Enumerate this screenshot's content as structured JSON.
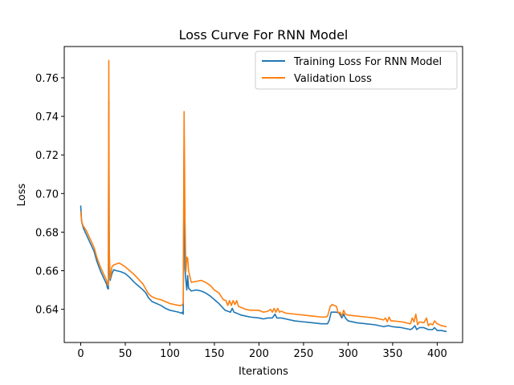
{
  "chart_data": {
    "type": "line",
    "title": "Loss Curve For RNN Model",
    "xlabel": "Iterations",
    "ylabel": "Loss",
    "xlim": [
      -18.5,
      428.5
    ],
    "ylim": [
      0.6228,
      0.7762
    ],
    "xticks": [
      0,
      50,
      100,
      150,
      200,
      250,
      300,
      350,
      400
    ],
    "xtick_labels": [
      "0",
      "50",
      "100",
      "150",
      "200",
      "250",
      "300",
      "350",
      "400"
    ],
    "yticks": [
      0.64,
      0.66,
      0.68,
      0.7,
      0.72,
      0.74,
      0.76
    ],
    "ytick_labels": [
      "0.64",
      "0.66",
      "0.68",
      "0.70",
      "0.72",
      "0.74",
      "0.76"
    ],
    "grid": false,
    "legend_position": "top-right",
    "series": [
      {
        "name": "Training Loss For RNN Model",
        "color": "#1f77b4",
        "points": [
          [
            0,
            0.6935
          ],
          [
            1,
            0.6855
          ],
          [
            3,
            0.682
          ],
          [
            6,
            0.679
          ],
          [
            10,
            0.675
          ],
          [
            15,
            0.67
          ],
          [
            18,
            0.665
          ],
          [
            22,
            0.66
          ],
          [
            26,
            0.656
          ],
          [
            29,
            0.653
          ],
          [
            30,
            0.651
          ],
          [
            31,
            0.6505
          ],
          [
            31.5,
            0.7475
          ],
          [
            32,
            0.66
          ],
          [
            33,
            0.655
          ],
          [
            35,
            0.6585
          ],
          [
            37,
            0.6605
          ],
          [
            40,
            0.66
          ],
          [
            45,
            0.6595
          ],
          [
            50,
            0.6585
          ],
          [
            55,
            0.6565
          ],
          [
            60,
            0.654
          ],
          [
            65,
            0.652
          ],
          [
            70,
            0.65
          ],
          [
            73,
            0.6485
          ],
          [
            76,
            0.646
          ],
          [
            80,
            0.644
          ],
          [
            85,
            0.643
          ],
          [
            90,
            0.642
          ],
          [
            95,
            0.6405
          ],
          [
            100,
            0.6395
          ],
          [
            105,
            0.639
          ],
          [
            110,
            0.6385
          ],
          [
            113,
            0.638
          ],
          [
            114,
            0.6385
          ],
          [
            115,
            0.6375
          ],
          [
            116,
            0.7235
          ],
          [
            117,
            0.661
          ],
          [
            118,
            0.655
          ],
          [
            119,
            0.65
          ],
          [
            120,
            0.6575
          ],
          [
            121,
            0.651
          ],
          [
            124,
            0.6495
          ],
          [
            130,
            0.65
          ],
          [
            135,
            0.6495
          ],
          [
            140,
            0.6485
          ],
          [
            145,
            0.647
          ],
          [
            150,
            0.645
          ],
          [
            155,
            0.643
          ],
          [
            160,
            0.6405
          ],
          [
            162,
            0.6395
          ],
          [
            165,
            0.639
          ],
          [
            168,
            0.6385
          ],
          [
            170,
            0.6405
          ],
          [
            172,
            0.6385
          ],
          [
            175,
            0.638
          ],
          [
            180,
            0.637
          ],
          [
            185,
            0.6365
          ],
          [
            190,
            0.636
          ],
          [
            200,
            0.6355
          ],
          [
            205,
            0.635
          ],
          [
            210,
            0.6355
          ],
          [
            215,
            0.6355
          ],
          [
            218,
            0.6375
          ],
          [
            220,
            0.6355
          ],
          [
            225,
            0.6355
          ],
          [
            230,
            0.635
          ],
          [
            240,
            0.634
          ],
          [
            250,
            0.6335
          ],
          [
            260,
            0.633
          ],
          [
            270,
            0.6325
          ],
          [
            277,
            0.6325
          ],
          [
            279,
            0.6345
          ],
          [
            281,
            0.6385
          ],
          [
            287,
            0.6385
          ],
          [
            290,
            0.638
          ],
          [
            293,
            0.6355
          ],
          [
            295,
            0.6375
          ],
          [
            297,
            0.6355
          ],
          [
            300,
            0.634
          ],
          [
            310,
            0.633
          ],
          [
            320,
            0.6325
          ],
          [
            330,
            0.632
          ],
          [
            340,
            0.631
          ],
          [
            345,
            0.6315
          ],
          [
            350,
            0.631
          ],
          [
            360,
            0.6305
          ],
          [
            370,
            0.6295
          ],
          [
            372,
            0.63
          ],
          [
            375,
            0.6315
          ],
          [
            377,
            0.6295
          ],
          [
            380,
            0.6305
          ],
          [
            385,
            0.6305
          ],
          [
            390,
            0.6295
          ],
          [
            395,
            0.6295
          ],
          [
            397,
            0.6305
          ],
          [
            400,
            0.629
          ],
          [
            405,
            0.629
          ],
          [
            410,
            0.6285
          ]
        ]
      },
      {
        "name": "Validation Loss",
        "color": "#ff7f0e",
        "points": [
          [
            0,
            0.6905
          ],
          [
            1,
            0.6855
          ],
          [
            3,
            0.683
          ],
          [
            6,
            0.681
          ],
          [
            10,
            0.677
          ],
          [
            15,
            0.672
          ],
          [
            18,
            0.667
          ],
          [
            22,
            0.662
          ],
          [
            26,
            0.658
          ],
          [
            29,
            0.655
          ],
          [
            30,
            0.653
          ],
          [
            31,
            0.6525
          ],
          [
            31.5,
            0.769
          ],
          [
            32,
            0.671
          ],
          [
            33,
            0.656
          ],
          [
            35,
            0.662
          ],
          [
            37,
            0.663
          ],
          [
            40,
            0.6635
          ],
          [
            43,
            0.664
          ],
          [
            45,
            0.6635
          ],
          [
            50,
            0.662
          ],
          [
            55,
            0.66
          ],
          [
            60,
            0.658
          ],
          [
            65,
            0.6555
          ],
          [
            70,
            0.653
          ],
          [
            73,
            0.6505
          ],
          [
            76,
            0.648
          ],
          [
            80,
            0.6465
          ],
          [
            85,
            0.6455
          ],
          [
            90,
            0.645
          ],
          [
            95,
            0.644
          ],
          [
            100,
            0.643
          ],
          [
            105,
            0.6425
          ],
          [
            110,
            0.642
          ],
          [
            113,
            0.642
          ],
          [
            114,
            0.6425
          ],
          [
            115,
            0.643
          ],
          [
            116,
            0.7425
          ],
          [
            117,
            0.6865
          ],
          [
            118,
            0.6595
          ],
          [
            119,
            0.667
          ],
          [
            120,
            0.6665
          ],
          [
            121,
            0.66
          ],
          [
            124,
            0.654
          ],
          [
            130,
            0.6545
          ],
          [
            135,
            0.655
          ],
          [
            140,
            0.654
          ],
          [
            145,
            0.6525
          ],
          [
            150,
            0.65
          ],
          [
            155,
            0.6485
          ],
          [
            160,
            0.645
          ],
          [
            163,
            0.6445
          ],
          [
            165,
            0.642
          ],
          [
            167,
            0.6445
          ],
          [
            169,
            0.642
          ],
          [
            171,
            0.6445
          ],
          [
            173,
            0.6425
          ],
          [
            175,
            0.6445
          ],
          [
            177,
            0.6415
          ],
          [
            180,
            0.641
          ],
          [
            185,
            0.64
          ],
          [
            190,
            0.6395
          ],
          [
            200,
            0.6395
          ],
          [
            205,
            0.6385
          ],
          [
            210,
            0.639
          ],
          [
            213,
            0.64
          ],
          [
            215,
            0.6385
          ],
          [
            217,
            0.6405
          ],
          [
            219,
            0.6385
          ],
          [
            221,
            0.6405
          ],
          [
            223,
            0.6385
          ],
          [
            225,
            0.639
          ],
          [
            230,
            0.638
          ],
          [
            240,
            0.6375
          ],
          [
            250,
            0.637
          ],
          [
            260,
            0.6365
          ],
          [
            270,
            0.636
          ],
          [
            275,
            0.636
          ],
          [
            277,
            0.6365
          ],
          [
            280,
            0.6415
          ],
          [
            282,
            0.6425
          ],
          [
            287,
            0.6415
          ],
          [
            289,
            0.638
          ],
          [
            291,
            0.6385
          ],
          [
            293,
            0.6365
          ],
          [
            295,
            0.6395
          ],
          [
            297,
            0.6375
          ],
          [
            300,
            0.637
          ],
          [
            310,
            0.6365
          ],
          [
            320,
            0.636
          ],
          [
            330,
            0.6355
          ],
          [
            340,
            0.6345
          ],
          [
            342,
            0.6355
          ],
          [
            344,
            0.6335
          ],
          [
            346,
            0.636
          ],
          [
            348,
            0.634
          ],
          [
            350,
            0.634
          ],
          [
            360,
            0.6335
          ],
          [
            365,
            0.633
          ],
          [
            370,
            0.6325
          ],
          [
            372,
            0.6355
          ],
          [
            374,
            0.6335
          ],
          [
            376,
            0.6375
          ],
          [
            378,
            0.632
          ],
          [
            380,
            0.6335
          ],
          [
            385,
            0.633
          ],
          [
            388,
            0.6355
          ],
          [
            390,
            0.6315
          ],
          [
            392,
            0.6325
          ],
          [
            395,
            0.632
          ],
          [
            397,
            0.634
          ],
          [
            400,
            0.6325
          ],
          [
            405,
            0.6315
          ],
          [
            410,
            0.631
          ]
        ]
      }
    ]
  }
}
